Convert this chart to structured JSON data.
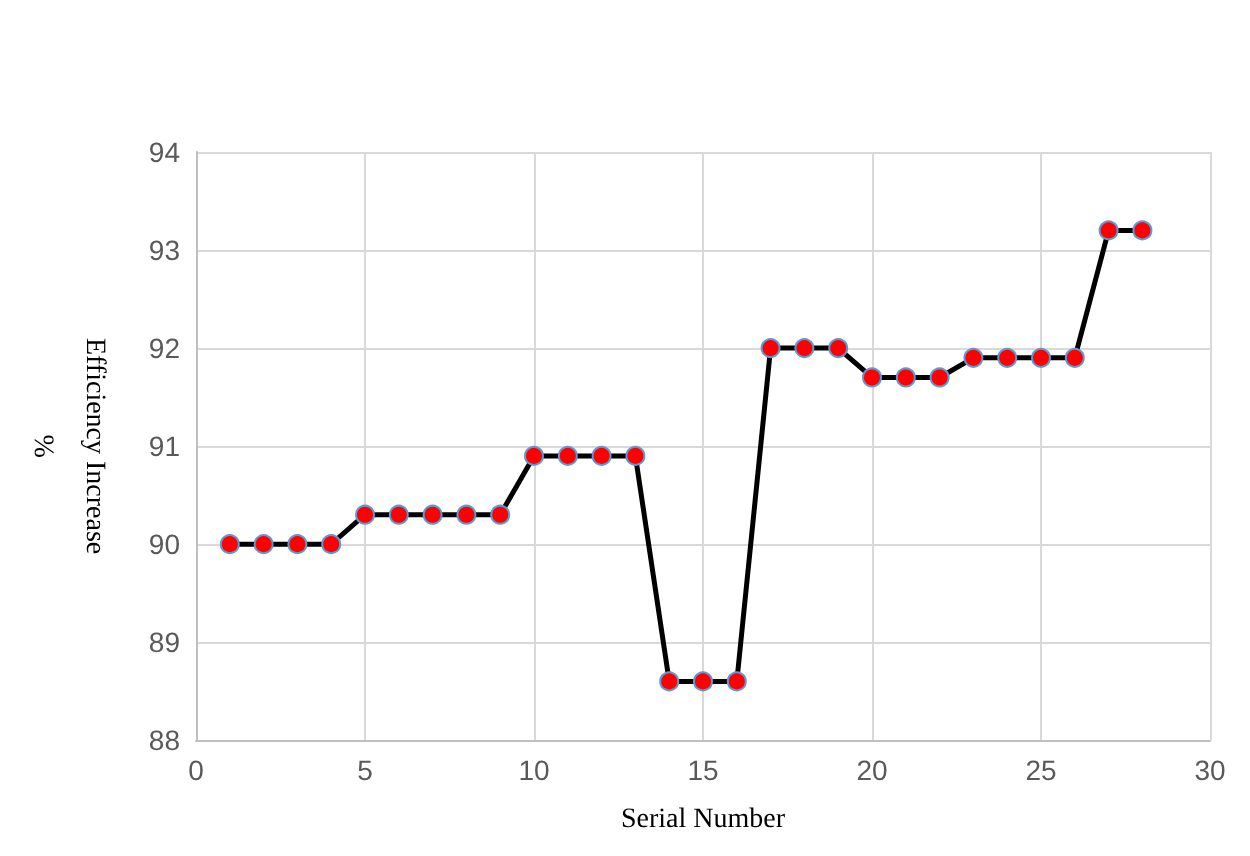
{
  "chart_data": {
    "type": "line",
    "xlabel": "Serial Number",
    "ylabel": "Efficiency Increase\n%",
    "x": [
      1,
      2,
      3,
      4,
      5,
      6,
      7,
      8,
      9,
      10,
      11,
      12,
      13,
      14,
      15,
      16,
      17,
      18,
      19,
      20,
      21,
      22,
      23,
      24,
      25,
      26,
      27,
      28
    ],
    "series": [
      {
        "color": "#000000",
        "values": [
          90.0,
          90.0,
          90.0,
          90.0,
          90.3,
          90.3,
          90.3,
          90.3,
          90.3,
          90.9,
          90.9,
          90.9,
          90.9,
          88.6,
          88.6,
          88.6,
          92.0,
          92.0,
          92.0,
          91.7,
          91.7,
          91.7,
          91.9,
          91.9,
          91.9,
          91.9,
          93.2,
          93.2
        ]
      }
    ],
    "xlim": [
      0,
      30
    ],
    "xticks": [
      0,
      5,
      10,
      15,
      20,
      25,
      30
    ],
    "ylim": [
      88,
      94
    ],
    "yticks": [
      88,
      89,
      90,
      91,
      92,
      93,
      94
    ],
    "grid": true,
    "marker": "circle",
    "line_style": "solid"
  }
}
